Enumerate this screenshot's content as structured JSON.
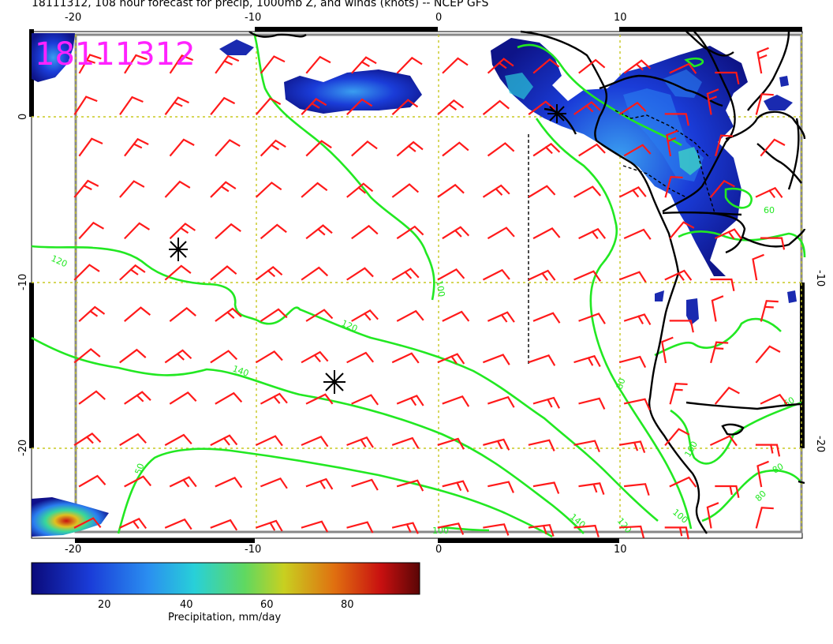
{
  "title": "18111312, 108 hour forecast for precip, 1000mb Z, and winds (knots) -- NCEP GFS",
  "stamp": "18111312",
  "axes": {
    "top_ticks": [
      "-20",
      "-10",
      "0",
      "10"
    ],
    "bottom_ticks": [
      "-20",
      "-10",
      "0",
      "10"
    ],
    "left_ticks": [
      "0",
      "-10",
      "-20"
    ],
    "right_ticks": [
      "-10",
      "-20"
    ]
  },
  "contour_labels": [
    "120",
    "100",
    "120",
    "140",
    "80",
    "60",
    "60",
    "80",
    "80",
    "50",
    "100",
    "120",
    "140",
    "160",
    "100"
  ],
  "colorbar": {
    "ticks": [
      "20",
      "40",
      "60",
      "80"
    ],
    "label": "Precipitation, mm/day",
    "colors": [
      "#10108a",
      "#1a3cd8",
      "#2a7ef0",
      "#2bc8e0",
      "#38d89a",
      "#a8d830",
      "#e0c020",
      "#e08010",
      "#c81010",
      "#6a0808"
    ]
  },
  "colors": {
    "contour": "#22e822",
    "barb": "#ff1a1a",
    "grid": "#c8c820",
    "coast": "#000000",
    "stamp": "#ff22ff"
  }
}
